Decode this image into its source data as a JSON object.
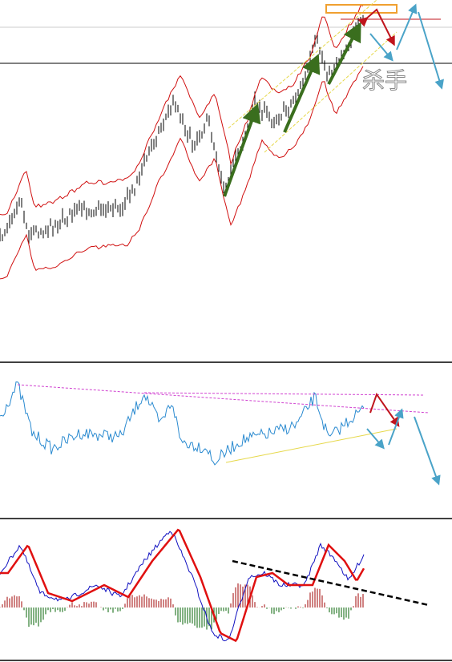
{
  "annotation": "杀手"
}
